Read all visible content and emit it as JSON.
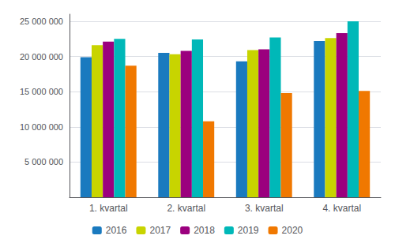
{
  "chart_data": {
    "type": "bar",
    "categories": [
      "1. kvartal",
      "2. kvartal",
      "3. kvartal",
      "4. kvartal"
    ],
    "series": [
      {
        "name": "2016",
        "color": "#1a7abf",
        "values": [
          19900000,
          20500000,
          19300000,
          22200000
        ]
      },
      {
        "name": "2017",
        "color": "#c8d400",
        "values": [
          21600000,
          20300000,
          20900000,
          22600000
        ]
      },
      {
        "name": "2018",
        "color": "#9b007e",
        "values": [
          22100000,
          20800000,
          21000000,
          23300000
        ]
      },
      {
        "name": "2019",
        "color": "#00b8b8",
        "values": [
          22500000,
          22400000,
          22700000,
          25000000
        ]
      },
      {
        "name": "2020",
        "color": "#f07800",
        "values": [
          18700000,
          10800000,
          14800000,
          15100000
        ]
      }
    ],
    "ylim": [
      0,
      26000000
    ],
    "yticks": [
      {
        "value": 0,
        "label": ""
      },
      {
        "value": 5000000,
        "label": "5 000 000"
      },
      {
        "value": 10000000,
        "label": "10 000 000"
      },
      {
        "value": 15000000,
        "label": "15 000 000"
      },
      {
        "value": 20000000,
        "label": "20 000 000"
      },
      {
        "value": 25000000,
        "label": "25 000 000"
      }
    ],
    "grid": true,
    "legend": "bottom"
  }
}
